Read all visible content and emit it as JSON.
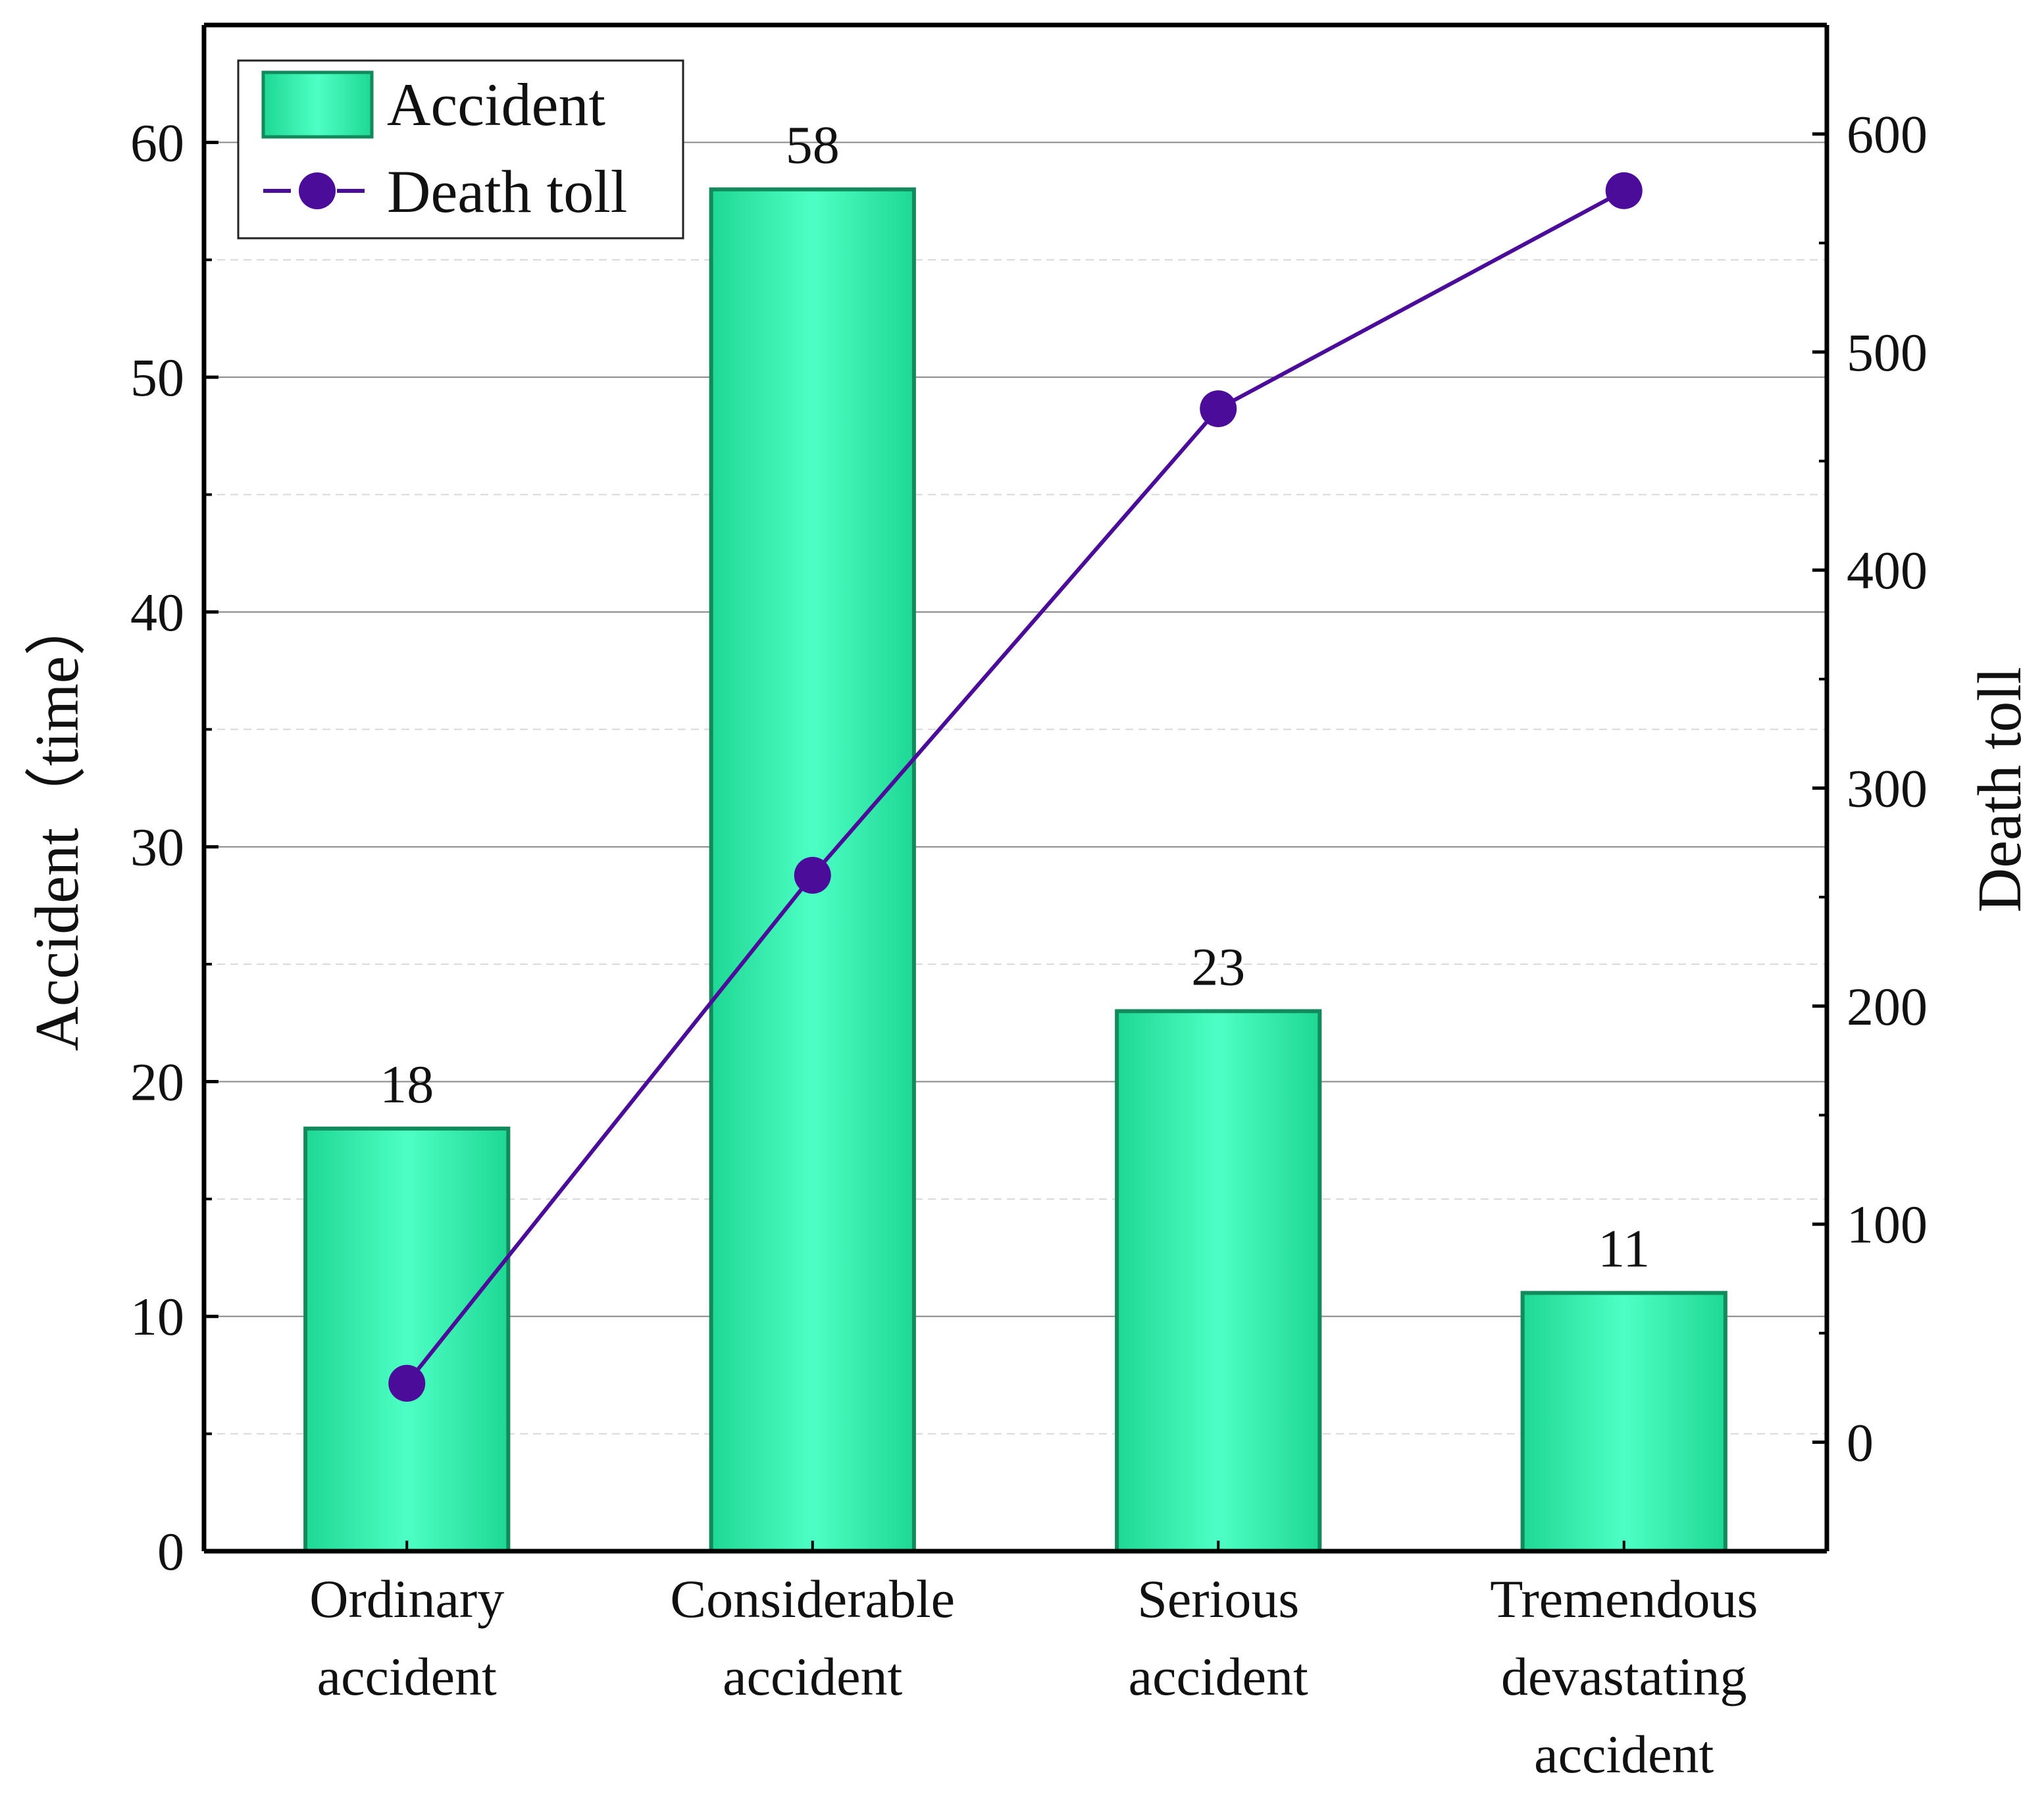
{
  "chart_data": {
    "type": "bar",
    "title": "",
    "categories": [
      [
        "Ordinary",
        "accident"
      ],
      [
        "Considerable",
        "accident"
      ],
      [
        "Serious",
        "accident"
      ],
      [
        "Tremendous",
        "devastating",
        "accident"
      ]
    ],
    "series": [
      {
        "name": "Accident",
        "type": "bar",
        "axis": "left",
        "values": [
          18,
          58,
          23,
          11
        ],
        "data_labels": [
          "18",
          "58",
          "23",
          "11"
        ]
      },
      {
        "name": "Death toll",
        "type": "line",
        "axis": "right",
        "values": [
          27,
          260,
          474,
          574
        ]
      }
    ],
    "y_left": {
      "label": "Accident（time）",
      "min": 0,
      "max": 65,
      "ticks": [
        "0",
        "10",
        "20",
        "30",
        "40",
        "50",
        "60"
      ],
      "tick_values": [
        0,
        10,
        20,
        30,
        40,
        50,
        60
      ]
    },
    "y_right": {
      "label": "Death toll",
      "min": -50,
      "max": 650,
      "ticks": [
        "0",
        "100",
        "200",
        "300",
        "400",
        "500",
        "600"
      ],
      "tick_values": [
        0,
        100,
        200,
        300,
        400,
        500,
        600
      ]
    },
    "grid": true,
    "legend_position": "top-left",
    "colors": {
      "bar_fill": "#4dffc4",
      "bar_fill_edge": "#1fd894",
      "bar_edge": "#128a5c",
      "line": "#4b0c9a",
      "grid": "#888888"
    }
  }
}
